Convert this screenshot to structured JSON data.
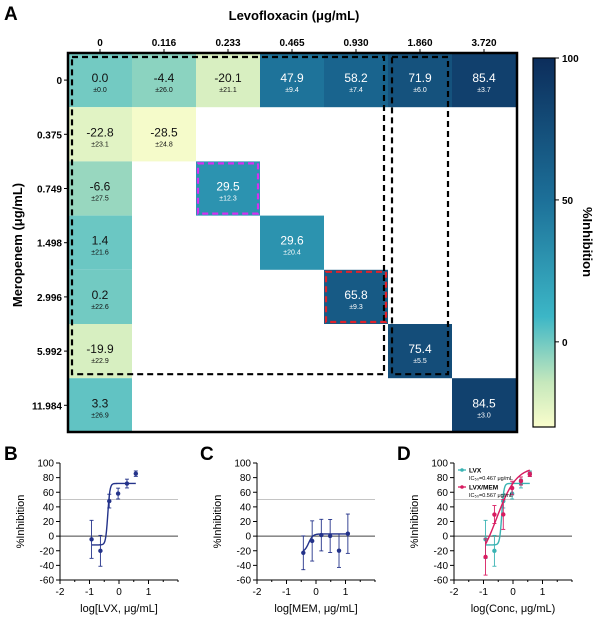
{
  "panels": {
    "A": "A",
    "B": "B",
    "C": "C",
    "D": "D"
  },
  "colors": {
    "scale": [
      "#fafdcc",
      "#c6e8bc",
      "#3cb6c6",
      "#1c6f98",
      "#0c2d5b"
    ],
    "dashed_black": "#000000",
    "dashed_magenta": "#d62ff0",
    "dashed_red": "#e0222b",
    "curve_blue": "#24338a",
    "curve_teal": "#3ab3b3",
    "curve_pink": "#d81b60"
  },
  "chart_data": [
    {
      "type": "heatmap",
      "panel": "A",
      "xlabel": "Levofloxacin (μg/mL)",
      "ylabel": "Meropenem (μg/mL)",
      "x_categories": [
        "0",
        "0.116",
        "0.233",
        "0.465",
        "0.930",
        "1.860",
        "3.720"
      ],
      "y_categories": [
        "0",
        "0.375",
        "0.749",
        "1.498",
        "2.996",
        "5.992",
        "11.984"
      ],
      "cells": [
        {
          "row": 0,
          "col": 0,
          "value": 0.0,
          "label": "0.0",
          "sd": "±0.0"
        },
        {
          "row": 0,
          "col": 1,
          "value": -4.4,
          "label": "-4.4",
          "sd": "±26.0"
        },
        {
          "row": 0,
          "col": 2,
          "value": -20.1,
          "label": "-20.1",
          "sd": "±21.1"
        },
        {
          "row": 0,
          "col": 3,
          "value": 47.9,
          "label": "47.9",
          "sd": "±9.4"
        },
        {
          "row": 0,
          "col": 4,
          "value": 58.2,
          "label": "58.2",
          "sd": "±7.4"
        },
        {
          "row": 0,
          "col": 5,
          "value": 71.9,
          "label": "71.9",
          "sd": "±6.0"
        },
        {
          "row": 0,
          "col": 6,
          "value": 85.4,
          "label": "85.4",
          "sd": "±3.7"
        },
        {
          "row": 1,
          "col": 0,
          "value": -22.8,
          "label": "-22.8",
          "sd": "±23.1"
        },
        {
          "row": 1,
          "col": 1,
          "value": -28.5,
          "label": "-28.5",
          "sd": "±24.8"
        },
        {
          "row": 2,
          "col": 0,
          "value": -6.6,
          "label": "-6.6",
          "sd": "±27.5"
        },
        {
          "row": 2,
          "col": 2,
          "value": 29.5,
          "label": "29.5",
          "sd": "±12.3"
        },
        {
          "row": 3,
          "col": 0,
          "value": 1.4,
          "label": "1.4",
          "sd": "±21.6"
        },
        {
          "row": 3,
          "col": 3,
          "value": 29.6,
          "label": "29.6",
          "sd": "±20.4"
        },
        {
          "row": 4,
          "col": 0,
          "value": 0.2,
          "label": "0.2",
          "sd": "±22.6"
        },
        {
          "row": 4,
          "col": 4,
          "value": 65.8,
          "label": "65.8",
          "sd": "±9.3"
        },
        {
          "row": 5,
          "col": 0,
          "value": -19.9,
          "label": "-19.9",
          "sd": "±22.9"
        },
        {
          "row": 5,
          "col": 5,
          "value": 75.4,
          "label": "75.4",
          "sd": "±5.5"
        },
        {
          "row": 6,
          "col": 0,
          "value": 3.3,
          "label": "3.3",
          "sd": "±26.9"
        },
        {
          "row": 6,
          "col": 6,
          "value": 84.5,
          "label": "84.5",
          "sd": "±3.0"
        }
      ],
      "highlights": [
        {
          "style": "dashed",
          "color": "black",
          "rows": [
            0,
            5
          ],
          "cols": [
            0,
            4
          ]
        },
        {
          "style": "dashed",
          "color": "black",
          "rows": [
            0,
            5
          ],
          "cols": [
            5,
            5
          ]
        },
        {
          "style": "dashed",
          "color": "magenta",
          "rows": [
            2,
            2
          ],
          "cols": [
            2,
            2
          ]
        },
        {
          "style": "dashed",
          "color": "red",
          "rows": [
            4,
            4
          ],
          "cols": [
            4,
            4
          ]
        }
      ],
      "colorbar": {
        "label": "%Inhibition",
        "range": [
          -30,
          100
        ],
        "ticks": [
          100,
          50,
          0
        ]
      }
    },
    {
      "type": "scatter",
      "panel": "B",
      "xlabel": "log[LVX, μg/mL]",
      "ylabel": "%Inhibition",
      "xlim": [
        -2,
        2
      ],
      "ylim": [
        -60,
        100
      ],
      "xticks": [
        -2,
        -1,
        0,
        1
      ],
      "yticks": [
        -60,
        -40,
        -20,
        0,
        20,
        40,
        60,
        80,
        100
      ],
      "reference_lines": [
        0,
        50
      ],
      "series": [
        {
          "points": [
            {
              "x": -0.93,
              "y": -4.4,
              "err": 26.0
            },
            {
              "x": -0.63,
              "y": -20.1,
              "err": 21.1
            },
            {
              "x": -0.33,
              "y": 47.9,
              "err": 9.4
            },
            {
              "x": -0.03,
              "y": 58.2,
              "err": 7.4
            },
            {
              "x": 0.27,
              "y": 71.9,
              "err": 6.0
            },
            {
              "x": 0.57,
              "y": 85.4,
              "err": 3.7
            }
          ],
          "curve": {
            "bottom": -12,
            "top": 72,
            "logIC50": -0.38,
            "hill": 12
          }
        }
      ]
    },
    {
      "type": "scatter",
      "panel": "C",
      "xlabel": "log[MEM, μg/mL]",
      "ylabel": "%Inhibition",
      "xlim": [
        -2,
        2
      ],
      "ylim": [
        -60,
        100
      ],
      "xticks": [
        -2,
        -1,
        0,
        1
      ],
      "yticks": [
        -60,
        -40,
        -20,
        0,
        20,
        40,
        60,
        80,
        100
      ],
      "reference_lines": [
        0,
        50
      ],
      "series": [
        {
          "points": [
            {
              "x": -0.43,
              "y": -22.8,
              "err": 23.1
            },
            {
              "x": -0.13,
              "y": -6.6,
              "err": 27.5
            },
            {
              "x": 0.18,
              "y": 1.4,
              "err": 21.6
            },
            {
              "x": 0.48,
              "y": 0.2,
              "err": 22.6
            },
            {
              "x": 0.78,
              "y": -19.9,
              "err": 22.9
            },
            {
              "x": 1.08,
              "y": 3.3,
              "err": 26.9
            }
          ],
          "curve": {
            "bottom": -22,
            "top": 3,
            "logIC50": -0.25,
            "hill": 6
          }
        }
      ]
    },
    {
      "type": "scatter",
      "panel": "D",
      "xlabel": "log(Conc, μg/mL)",
      "ylabel": "%Inhibition",
      "xlim": [
        -2,
        2
      ],
      "ylim": [
        -60,
        100
      ],
      "xticks": [
        -2,
        -1,
        0,
        1
      ],
      "yticks": [
        -60,
        -40,
        -20,
        0,
        20,
        40,
        60,
        80,
        100
      ],
      "reference_lines": [
        0,
        50
      ],
      "series": [
        {
          "name": "LVX",
          "ic50_text": "IC₅₀=0.467 μg/mL",
          "points": [
            {
              "x": -0.93,
              "y": -4.4,
              "err": 26.0
            },
            {
              "x": -0.63,
              "y": -20.1,
              "err": 21.1
            },
            {
              "x": -0.33,
              "y": 47.9,
              "err": 9.4
            },
            {
              "x": -0.03,
              "y": 58.2,
              "err": 7.4
            },
            {
              "x": 0.27,
              "y": 71.9,
              "err": 6.0
            },
            {
              "x": 0.57,
              "y": 85.4,
              "err": 3.7
            }
          ],
          "curve": {
            "bottom": -12,
            "top": 72,
            "logIC50": -0.38,
            "hill": 12
          }
        },
        {
          "name": "LVX/MEM",
          "ic50_text": "IC₅₀=0.567 μg/mL",
          "points": [
            {
              "x": -0.93,
              "y": -28.5,
              "err": 24.8
            },
            {
              "x": -0.63,
              "y": 29.5,
              "err": 12.3
            },
            {
              "x": -0.33,
              "y": 29.6,
              "err": 20.4
            },
            {
              "x": -0.03,
              "y": 65.8,
              "err": 9.3
            },
            {
              "x": 0.27,
              "y": 75.4,
              "err": 5.5
            },
            {
              "x": 0.57,
              "y": 84.5,
              "err": 3.0
            }
          ],
          "curve": {
            "bottom": -45,
            "top": 95,
            "logIC50": -0.55,
            "hill": 1.3
          }
        }
      ]
    }
  ]
}
